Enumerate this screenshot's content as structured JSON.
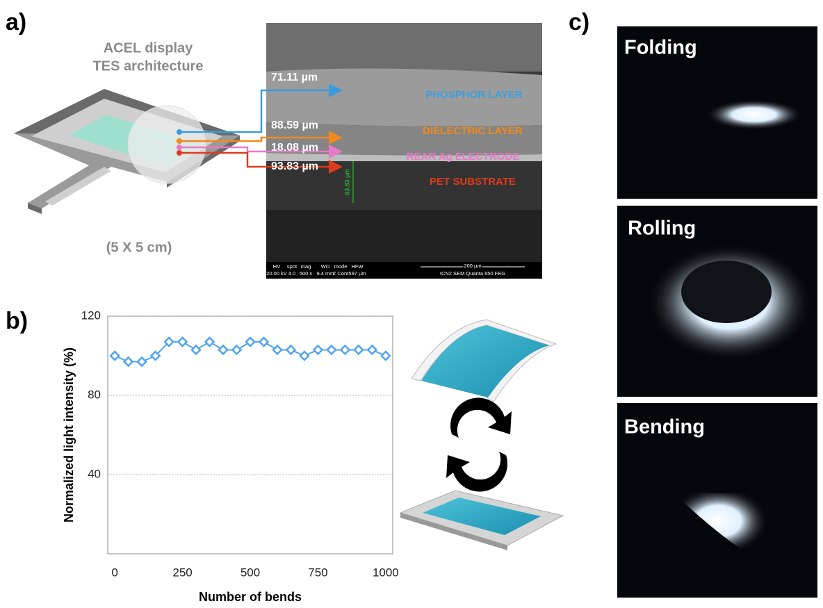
{
  "panel_labels": {
    "a": "a)",
    "b": "b)",
    "c": "c)"
  },
  "panel_a": {
    "title_line1": "ACEL display",
    "title_line2": "TES architecture",
    "size": "(5 X 5 cm)",
    "thicknesses": [
      "71.11 µm",
      "88.59 µm",
      "18.08 µm",
      "93.83 µm"
    ],
    "layers": [
      "PHOSPHOR LAYER",
      "DIELECTRIC LAYER",
      "REAR Ag ELECTRODE",
      "PET SUBSTRATE"
    ],
    "sem_measure": "93.83 µm",
    "sem_footer": {
      "headers": [
        "HV",
        "spot",
        "mag",
        "WD",
        "mode",
        "HFW"
      ],
      "values": [
        "20.00 kV",
        "4.0",
        "500 x",
        "9.4 mm",
        "Z Cont",
        "597 µm"
      ],
      "scale": "200 µm",
      "instrument": "ICN2 SEM Quanta 650 FEG"
    }
  },
  "chart_data": {
    "type": "line",
    "x_label": "Number of bends",
    "y_label": "Normalized light intensity (%)",
    "x": [
      0,
      50,
      100,
      150,
      200,
      250,
      300,
      350,
      400,
      450,
      500,
      550,
      600,
      650,
      700,
      750,
      800,
      850,
      900,
      950,
      1000
    ],
    "series": [
      {
        "color": "#4da3f0",
        "values": [
          100,
          97,
          97,
          100,
          107,
          107,
          103,
          107,
          103,
          103,
          107,
          107,
          103,
          103,
          100,
          103,
          103,
          103,
          103,
          103,
          100
        ]
      }
    ],
    "xlim": [
      -26,
      1026
    ],
    "ylim": [
      0,
      120
    ],
    "xticks": [
      0,
      250,
      500,
      750,
      1000
    ],
    "yticks": [
      40,
      80,
      120
    ],
    "grid": true
  },
  "panel_c": {
    "labels": [
      "Folding",
      "Rolling",
      "Bending"
    ]
  }
}
